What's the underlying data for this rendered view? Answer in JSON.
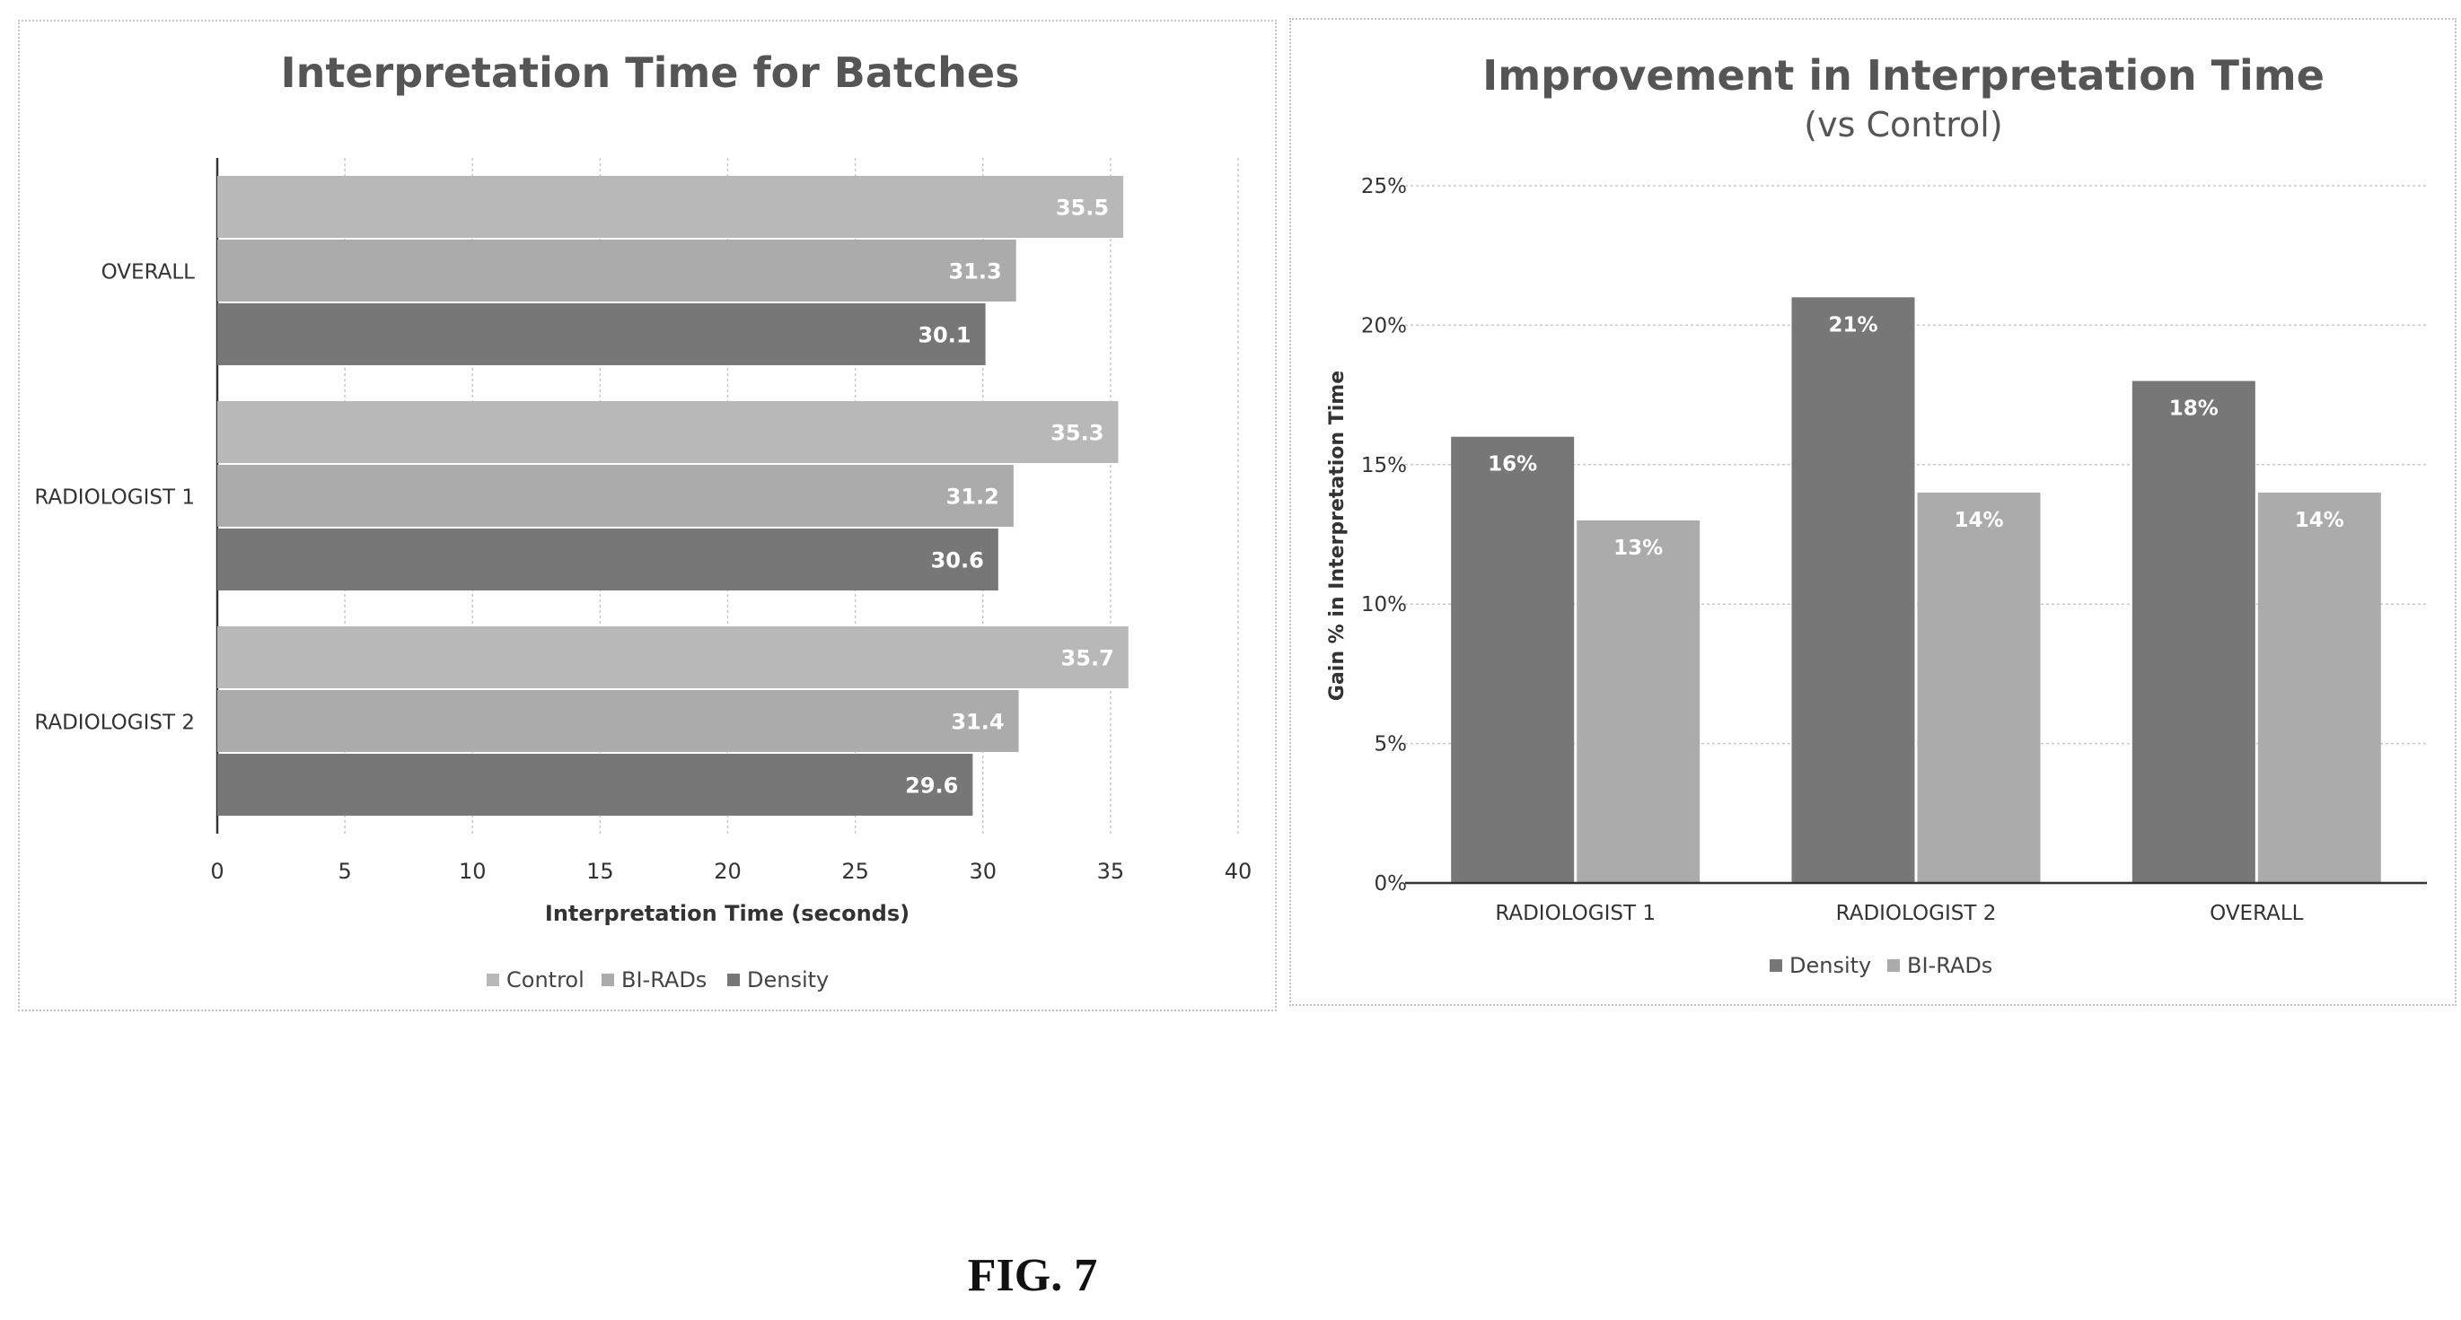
{
  "figure_caption": "FIG. 7",
  "colors": {
    "control": "#b8b8b8",
    "birads": "#ababab",
    "density": "#777777",
    "grid": "#c8c8c8",
    "axis": "#333333"
  },
  "chart_data": [
    {
      "type": "bar",
      "orientation": "horizontal",
      "title": "Interpretation Time for Batches",
      "xlabel": "Interpretation  Time (seconds)",
      "ylabel": "",
      "categories": [
        "OVERALL",
        "RADIOLOGIST 1",
        "RADIOLOGIST 2"
      ],
      "series": [
        {
          "name": "Control",
          "values": [
            35.5,
            35.3,
            35.7
          ]
        },
        {
          "name": "BI-RADs",
          "values": [
            31.3,
            31.2,
            31.4
          ]
        },
        {
          "name": "Density",
          "values": [
            30.1,
            30.6,
            29.6
          ]
        }
      ],
      "data_labels": [
        [
          "35.5",
          "35.3",
          "35.7"
        ],
        [
          "31.3",
          "31.2",
          "31.4"
        ],
        [
          "30.1",
          "30.6",
          "29.6"
        ]
      ],
      "xlim": [
        0,
        40
      ],
      "xticks": [
        "0",
        "5",
        "10",
        "15",
        "20",
        "25",
        "30",
        "35",
        "40"
      ],
      "grid": true,
      "legend": [
        "Control",
        "BI-RADs",
        "Density"
      ],
      "legend_position": "bottom"
    },
    {
      "type": "bar",
      "orientation": "vertical",
      "title": "Improvement in Interpretation Time",
      "subtitle": "(vs Control)",
      "xlabel": "",
      "ylabel": "Gain % in Interpretation  Time",
      "categories": [
        "RADIOLOGIST 1",
        "RADIOLOGIST 2",
        "OVERALL"
      ],
      "series": [
        {
          "name": "Density",
          "values": [
            16,
            21,
            18
          ]
        },
        {
          "name": "BI-RADs",
          "values": [
            13,
            14,
            14
          ]
        }
      ],
      "data_labels": [
        [
          "16%",
          "21%",
          "18%"
        ],
        [
          "13%",
          "14%",
          "14%"
        ]
      ],
      "ylim": [
        0,
        25
      ],
      "yticks": [
        "0%",
        "5%",
        "10%",
        "15%",
        "20%",
        "25%"
      ],
      "grid": true,
      "legend": [
        "Density",
        "BI-RADs"
      ],
      "legend_position": "bottom"
    }
  ]
}
